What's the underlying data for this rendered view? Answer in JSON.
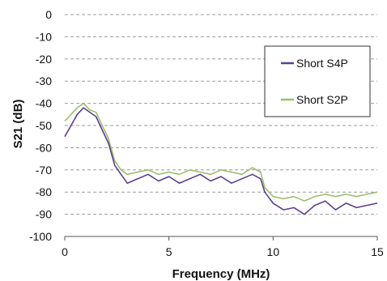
{
  "chart_data": {
    "type": "line",
    "xlabel": "Frequency (MHz)",
    "ylabel": "S21 (dB)",
    "xlim": [
      0,
      15
    ],
    "ylim": [
      -100,
      0
    ],
    "xticks": [
      0,
      5,
      10,
      15
    ],
    "yticks": [
      0,
      -10,
      -20,
      -30,
      -40,
      -50,
      -60,
      -70,
      -80,
      -90,
      -100
    ],
    "grid": "horizontal dashed",
    "legend_position": "top-right",
    "series": [
      {
        "name": "Short S4P",
        "color": "#5b3f8f",
        "x": [
          0.0,
          0.3,
          0.6,
          0.9,
          1.2,
          1.5,
          1.8,
          2.1,
          2.4,
          2.7,
          3.0,
          3.5,
          4.0,
          4.5,
          5.0,
          5.5,
          6.0,
          6.5,
          7.0,
          7.5,
          8.0,
          8.5,
          9.0,
          9.4,
          9.6,
          10.0,
          10.5,
          11.0,
          11.5,
          12.0,
          12.5,
          13.0,
          13.5,
          14.0,
          14.5,
          15.0
        ],
        "y": [
          -55,
          -50,
          -45,
          -42,
          -44,
          -46,
          -52,
          -58,
          -68,
          -72,
          -76,
          -74,
          -72,
          -75,
          -73,
          -76,
          -74,
          -72,
          -75,
          -73,
          -76,
          -74,
          -72,
          -74,
          -80,
          -85,
          -88,
          -87,
          -90,
          -86,
          -84,
          -88,
          -85,
          -87,
          -86,
          -85
        ]
      },
      {
        "name": "Short S2P",
        "color": "#9cbf6c",
        "x": [
          0.0,
          0.3,
          0.6,
          0.9,
          1.2,
          1.5,
          1.8,
          2.1,
          2.4,
          2.7,
          3.0,
          3.5,
          4.0,
          4.5,
          5.0,
          5.5,
          6.0,
          6.5,
          7.0,
          7.5,
          8.0,
          8.5,
          9.0,
          9.4,
          9.6,
          10.0,
          10.5,
          11.0,
          11.5,
          12.0,
          12.5,
          13.0,
          13.5,
          14.0,
          14.5,
          15.0
        ],
        "y": [
          -48,
          -45,
          -42,
          -40,
          -43,
          -44,
          -50,
          -56,
          -66,
          -70,
          -72,
          -71,
          -70,
          -72,
          -71,
          -72,
          -70,
          -71,
          -72,
          -70,
          -71,
          -72,
          -69,
          -71,
          -78,
          -82,
          -83,
          -82,
          -84,
          -82,
          -81,
          -82,
          -81,
          -82,
          -81,
          -80
        ]
      }
    ]
  }
}
